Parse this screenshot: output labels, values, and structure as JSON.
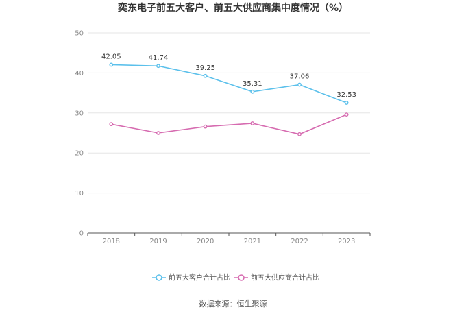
{
  "chart_data": {
    "type": "line",
    "title": "奕东电子前五大客户、前五大供应商集中度情况（%）",
    "xlabel": "",
    "ylabel": "",
    "categories": [
      "2018",
      "2019",
      "2020",
      "2021",
      "2022",
      "2023"
    ],
    "ylim": [
      0,
      50
    ],
    "yticks": [
      0,
      10,
      20,
      30,
      40,
      50
    ],
    "grid": true,
    "legend_position": "bottom",
    "series": [
      {
        "name": "前五大客户合计占比",
        "values": [
          42.05,
          41.74,
          39.25,
          35.31,
          37.06,
          32.53
        ],
        "labels": [
          "42.05",
          "41.74",
          "39.25",
          "35.31",
          "37.06",
          "32.53"
        ],
        "show_labels": true,
        "color": "#5bc0eb"
      },
      {
        "name": "前五大供应商合计占比",
        "values": [
          27.2,
          25.0,
          26.6,
          27.4,
          24.7,
          29.6
        ],
        "show_labels": false,
        "color": "#d66bb0"
      }
    ]
  },
  "source": "数据来源：恒生聚源"
}
